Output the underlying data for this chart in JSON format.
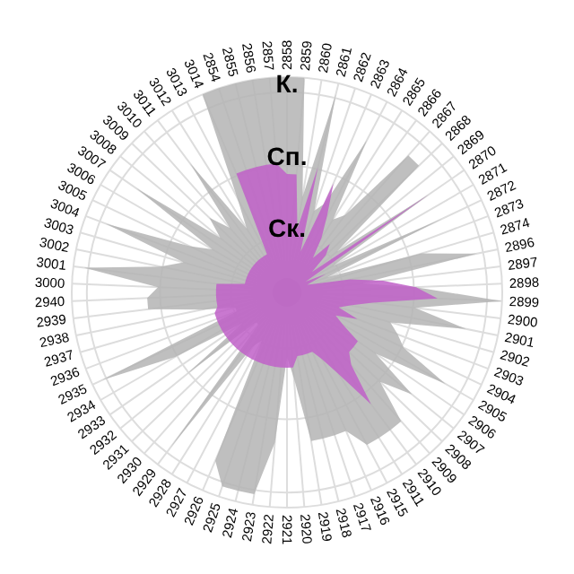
{
  "chart_data": {
    "type": "radar",
    "categories": [
      "2858",
      "2859",
      "2860",
      "2861",
      "2862",
      "2863",
      "2864",
      "2865",
      "2866",
      "2867",
      "2868",
      "2869",
      "2870",
      "2871",
      "2872",
      "2873",
      "2874",
      "2896",
      "2897",
      "2898",
      "2899",
      "2900",
      "2901",
      "2902",
      "2903",
      "2904",
      "2905",
      "2906",
      "2907",
      "2908",
      "2909",
      "2910",
      "2911",
      "2915",
      "2916",
      "2917",
      "2918",
      "2919",
      "2920",
      "2921",
      "2922",
      "2923",
      "2924",
      "2925",
      "2926",
      "2927",
      "2928",
      "2929",
      "2930",
      "2931",
      "2932",
      "2933",
      "2934",
      "2935",
      "2936",
      "2937",
      "2938",
      "2939",
      "2940",
      "3000",
      "3001",
      "3002",
      "3003",
      "3004",
      "3005",
      "3006",
      "3007",
      "3008",
      "3009",
      "3010",
      "3011",
      "3012",
      "3013",
      "3014",
      "2854",
      "2855",
      "2856",
      "2857"
    ],
    "series": [
      {
        "color": "#b4b4b4",
        "values": [
          100,
          100,
          45,
          95,
          40,
          45,
          80,
          40,
          45,
          85,
          85,
          30,
          80,
          25,
          80,
          20,
          65,
          90,
          35,
          60,
          100,
          60,
          85,
          50,
          55,
          60,
          85,
          50,
          75,
          60,
          80,
          80,
          80,
          80,
          70,
          70,
          70,
          70,
          40,
          30,
          70,
          95,
          95,
          95,
          85,
          25,
          30,
          90,
          20,
          20,
          60,
          25,
          60,
          95,
          25,
          25,
          40,
          65,
          65,
          60,
          95,
          60,
          50,
          90,
          50,
          40,
          85,
          40,
          50,
          40,
          75,
          35,
          50,
          100,
          100,
          100,
          100,
          100
        ]
      },
      {
        "color": "#c060c8",
        "values": [
          55,
          55,
          30,
          60,
          20,
          55,
          40,
          30,
          20,
          30,
          25,
          15,
          80,
          10,
          20,
          10,
          15,
          30,
          45,
          60,
          70,
          40,
          30,
          25,
          35,
          25,
          30,
          40,
          40,
          40,
          45,
          65,
          45,
          35,
          30,
          30,
          30,
          30,
          35,
          35,
          35,
          35,
          35,
          35,
          35,
          35,
          35,
          35,
          35,
          35,
          35,
          35,
          35,
          35,
          35,
          35,
          33,
          33,
          33,
          33,
          33,
          20,
          20,
          20,
          20,
          20,
          20,
          20,
          20,
          20,
          20,
          20,
          20,
          60,
          60,
          60,
          60,
          60
        ]
      }
    ],
    "ylim": [
      0,
      100
    ],
    "yticks": [
      {
        "value": 26,
        "label": "Ск."
      },
      {
        "value": 59,
        "label": "Сп."
      },
      {
        "value": 93,
        "label": "К."
      }
    ],
    "grid": true
  }
}
